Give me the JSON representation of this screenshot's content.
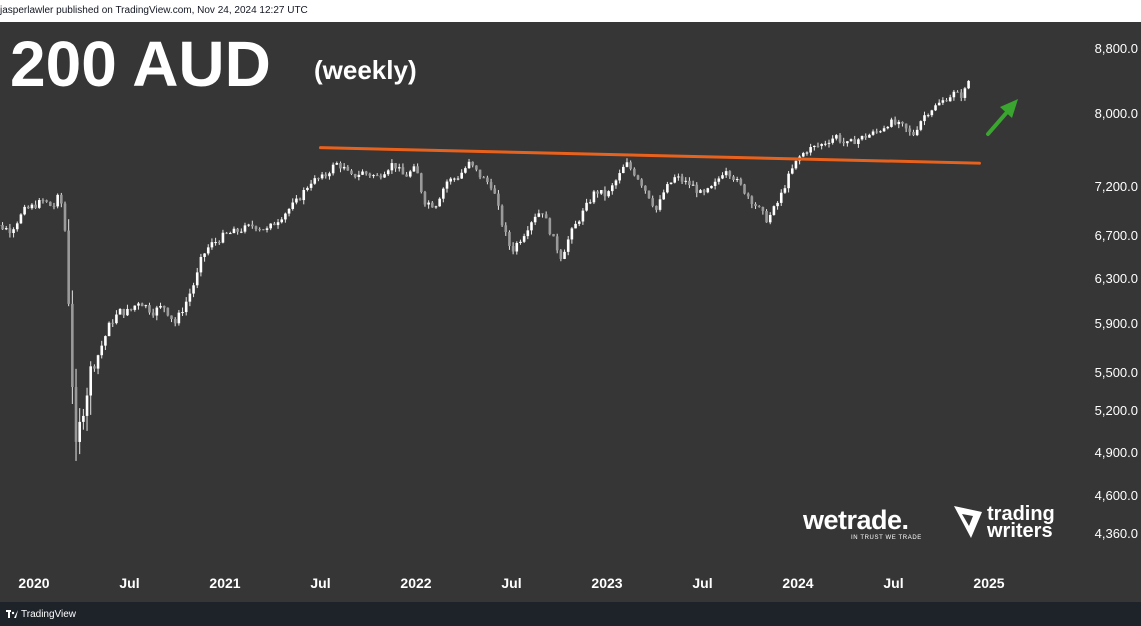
{
  "header": {
    "published_text": "jasperlawler published on TradingView.com, Nov 24, 2024 12:27 UTC"
  },
  "title": "200 AUD",
  "subtitle": "(weekly)",
  "footer": {
    "brand": "TradingView"
  },
  "logos": {
    "wetrade": "wetrade.",
    "wetrade_tagline": "IN TRUST WE TRADE",
    "tw_line1": "trading",
    "tw_line2": "writers"
  },
  "colors": {
    "background": "#363636",
    "candle": "#ffffff",
    "trendline": "#e8621e",
    "arrow": "#3aa62f",
    "axis_text": "#ffffff"
  },
  "chart_data": {
    "type": "candlestick",
    "title": "200 AUD (weekly)",
    "timeframe": "weekly",
    "grid": false,
    "xlim": [
      2019.72,
      2025.35
    ],
    "x_ticks": [
      {
        "label": "2020",
        "x": 2020.0
      },
      {
        "label": "Jul",
        "x": 2020.5
      },
      {
        "label": "2021",
        "x": 2021.0
      },
      {
        "label": "Jul",
        "x": 2021.5
      },
      {
        "label": "2022",
        "x": 2022.0
      },
      {
        "label": "Jul",
        "x": 2022.5
      },
      {
        "label": "2023",
        "x": 2023.0
      },
      {
        "label": "Jul",
        "x": 2023.5
      },
      {
        "label": "2024",
        "x": 2024.0
      },
      {
        "label": "Jul",
        "x": 2024.5
      },
      {
        "label": "2025",
        "x": 2025.0
      }
    ],
    "y_ticks": [
      8800,
      8000,
      7200,
      6700,
      6300,
      5900,
      5500,
      5200,
      4900,
      4600,
      4360
    ],
    "price_path": [
      [
        2019.72,
        6750
      ],
      [
        2019.8,
        6800
      ],
      [
        2019.88,
        6750
      ],
      [
        2019.95,
        6950
      ],
      [
        2020.05,
        7050
      ],
      [
        2020.1,
        6980
      ],
      [
        2020.13,
        7100
      ],
      [
        2020.155,
        6950
      ],
      [
        2020.175,
        6400
      ],
      [
        2020.19,
        5800
      ],
      [
        2020.205,
        5300
      ],
      [
        2020.215,
        4800
      ],
      [
        2020.235,
        5000
      ],
      [
        2020.26,
        5300
      ],
      [
        2020.3,
        5500
      ],
      [
        2020.35,
        5700
      ],
      [
        2020.4,
        5900
      ],
      [
        2020.45,
        6000
      ],
      [
        2020.5,
        6000
      ],
      [
        2020.55,
        6100
      ],
      [
        2020.62,
        6000
      ],
      [
        2020.68,
        6050
      ],
      [
        2020.74,
        5900
      ],
      [
        2020.8,
        6100
      ],
      [
        2020.85,
        6300
      ],
      [
        2020.88,
        6500
      ],
      [
        2020.92,
        6600
      ],
      [
        2021.0,
        6700
      ],
      [
        2021.08,
        6750
      ],
      [
        2021.15,
        6800
      ],
      [
        2021.22,
        6750
      ],
      [
        2021.3,
        6900
      ],
      [
        2021.38,
        7050
      ],
      [
        2021.45,
        7250
      ],
      [
        2021.52,
        7300
      ],
      [
        2021.58,
        7450
      ],
      [
        2021.62,
        7400
      ],
      [
        2021.66,
        7300
      ],
      [
        2021.72,
        7350
      ],
      [
        2021.8,
        7300
      ],
      [
        2021.88,
        7450
      ],
      [
        2021.94,
        7300
      ],
      [
        2022.0,
        7400
      ],
      [
        2022.04,
        7050
      ],
      [
        2022.1,
        7000
      ],
      [
        2022.16,
        7250
      ],
      [
        2022.22,
        7300
      ],
      [
        2022.28,
        7450
      ],
      [
        2022.34,
        7300
      ],
      [
        2022.4,
        7200
      ],
      [
        2022.46,
        6750
      ],
      [
        2022.5,
        6550
      ],
      [
        2022.56,
        6700
      ],
      [
        2022.62,
        6900
      ],
      [
        2022.66,
        6950
      ],
      [
        2022.72,
        6650
      ],
      [
        2022.76,
        6500
      ],
      [
        2022.82,
        6750
      ],
      [
        2022.88,
        6950
      ],
      [
        2022.94,
        7150
      ],
      [
        2023.0,
        7100
      ],
      [
        2023.06,
        7300
      ],
      [
        2023.1,
        7450
      ],
      [
        2023.16,
        7300
      ],
      [
        2023.22,
        7100
      ],
      [
        2023.26,
        6950
      ],
      [
        2023.3,
        7150
      ],
      [
        2023.36,
        7300
      ],
      [
        2023.4,
        7250
      ],
      [
        2023.45,
        7200
      ],
      [
        2023.5,
        7100
      ],
      [
        2023.56,
        7200
      ],
      [
        2023.62,
        7400
      ],
      [
        2023.68,
        7250
      ],
      [
        2023.74,
        7100
      ],
      [
        2023.8,
        6950
      ],
      [
        2023.84,
        6850
      ],
      [
        2023.9,
        7050
      ],
      [
        2023.95,
        7300
      ],
      [
        2024.0,
        7500
      ],
      [
        2024.05,
        7600
      ],
      [
        2024.12,
        7650
      ],
      [
        2024.2,
        7750
      ],
      [
        2024.25,
        7650
      ],
      [
        2024.3,
        7700
      ],
      [
        2024.36,
        7750
      ],
      [
        2024.42,
        7800
      ],
      [
        2024.48,
        7900
      ],
      [
        2024.55,
        7850
      ],
      [
        2024.6,
        7750
      ],
      [
        2024.65,
        7950
      ],
      [
        2024.7,
        8050
      ],
      [
        2024.76,
        8150
      ],
      [
        2024.82,
        8250
      ],
      [
        2024.85,
        8200
      ],
      [
        2024.88,
        8300
      ],
      [
        2024.9,
        8450
      ]
    ],
    "annotations": [
      {
        "type": "trendline",
        "color": "#e8621e",
        "x1": 2021.5,
        "y1": 7620,
        "x2": 2024.95,
        "y2": 7450,
        "label": ""
      },
      {
        "type": "arrow",
        "color": "#3aa62f",
        "direction": "up-right",
        "label": ""
      }
    ]
  }
}
